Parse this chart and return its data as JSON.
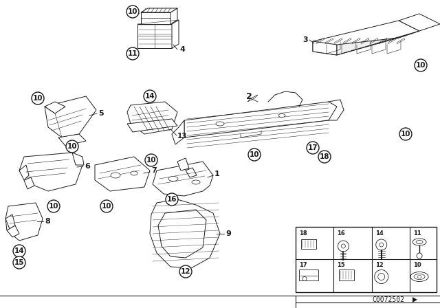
{
  "bg_color": "#ffffff",
  "diagram_number": "C0072502",
  "line_color": "#1a1a1a",
  "lw": 0.7,
  "callout_r": 9,
  "callout_fs": 7.5,
  "label_fs": 8
}
